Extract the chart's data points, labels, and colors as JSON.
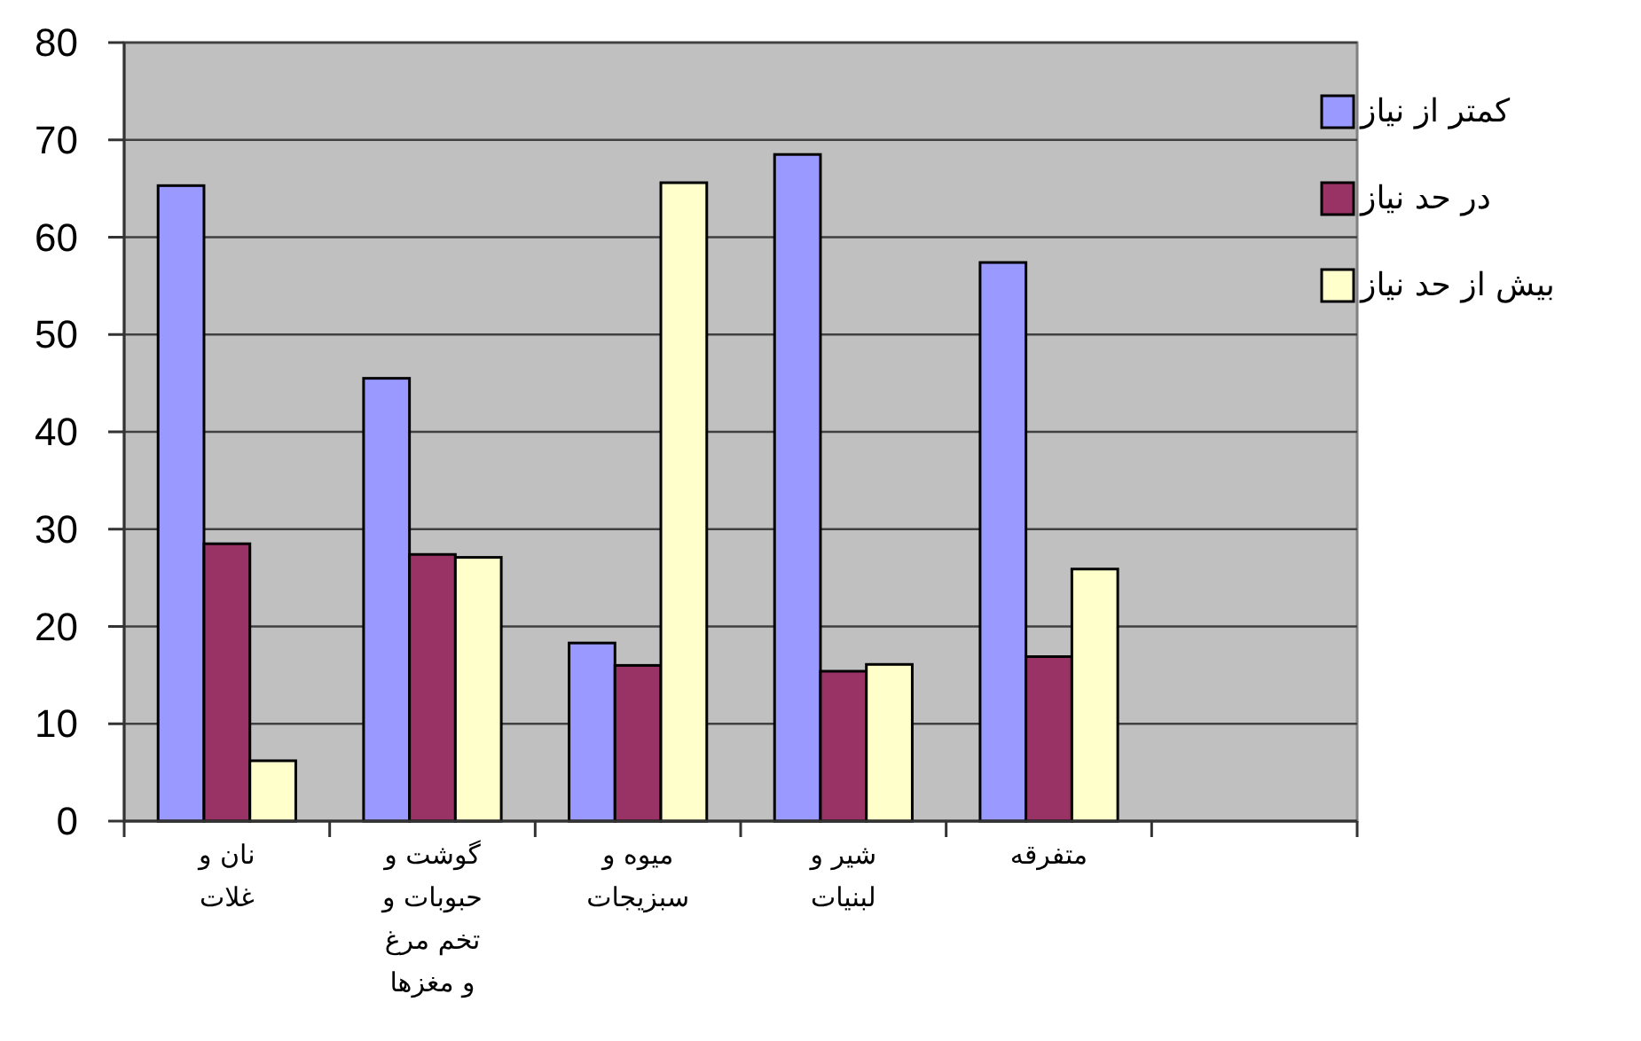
{
  "chart_data": {
    "type": "bar",
    "categories": [
      "نان و غلات",
      "گوشت و حبوبات و تخم مرغ و مغزها",
      "میوه و سبزیجات",
      "شیر و لبنیات",
      "متفرقه",
      null
    ],
    "series": [
      {
        "name": "کمتر از نیاز",
        "color": "#9999ff",
        "values": [
          65.3,
          45.5,
          18.3,
          68.5,
          57.4,
          null
        ]
      },
      {
        "name": "در حد نیاز",
        "color": "#993366",
        "values": [
          28.5,
          27.4,
          16.0,
          15.4,
          16.9,
          null
        ]
      },
      {
        "name": "بیش از حد نیاز",
        "color": "#ffffcc",
        "values": [
          6.2,
          27.1,
          65.6,
          16.1,
          25.9,
          null
        ]
      }
    ],
    "ylim": [
      0,
      80
    ],
    "yticks": [
      0,
      10,
      20,
      30,
      40,
      50,
      60,
      70,
      80
    ],
    "grid": "y",
    "legend": "right"
  }
}
